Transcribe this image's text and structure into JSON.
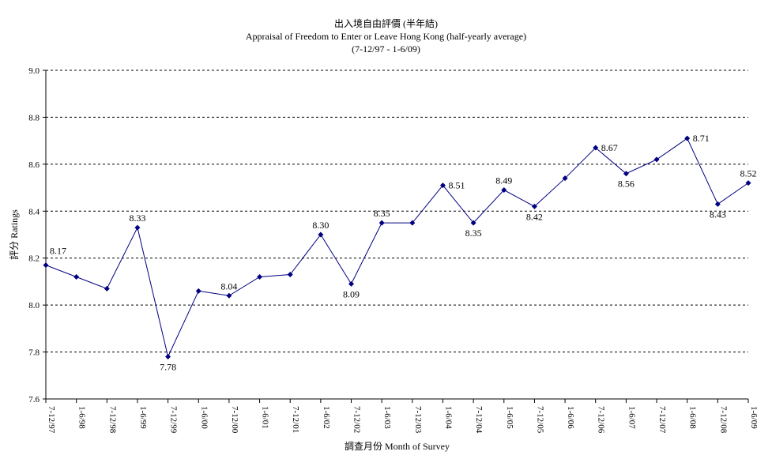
{
  "chart_data": {
    "type": "line",
    "title": "出入境自由評價 (半年結)",
    "subtitle": "Appraisal of Freedom to Enter or Leave Hong Kong (half-yearly average)",
    "period": "(7-12/97 - 1-6/09)",
    "xlabel": "調查月份 Month of Survey",
    "ylabel": "評分 Ratings",
    "ylim": [
      7.6,
      9.0
    ],
    "yticks": [
      "7.6",
      "7.8",
      "8.0",
      "8.2",
      "8.4",
      "8.6",
      "8.8",
      "9.0"
    ],
    "grid": true,
    "series_color": "#000080",
    "categories": [
      "7-12/97",
      "1-6/98",
      "7-12/98",
      "1-6/99",
      "7-12/99",
      "1-6/00",
      "7-12/00",
      "1-6/01",
      "7-12/01",
      "1-6/02",
      "7-12/02",
      "1-6/03",
      "7-12/03",
      "1-6/04",
      "7-12/04",
      "1-6/05",
      "7-12/05",
      "1-6/06",
      "7-12/06",
      "1-6/07",
      "7-12/07",
      "1-6/08",
      "7-12/08",
      "1-6/09"
    ],
    "values": [
      8.17,
      8.12,
      8.07,
      8.33,
      7.78,
      8.06,
      8.04,
      8.12,
      8.13,
      8.3,
      8.09,
      8.35,
      8.35,
      8.51,
      8.35,
      8.49,
      8.42,
      8.54,
      8.67,
      8.56,
      8.62,
      8.71,
      8.43,
      8.52
    ],
    "data_labels": [
      {
        "index": 0,
        "text": "8.17",
        "position": "above-right"
      },
      {
        "index": 3,
        "text": "8.33",
        "position": "above"
      },
      {
        "index": 4,
        "text": "7.78",
        "position": "below"
      },
      {
        "index": 6,
        "text": "8.04",
        "position": "above"
      },
      {
        "index": 9,
        "text": "8.30",
        "position": "above"
      },
      {
        "index": 10,
        "text": "8.09",
        "position": "below"
      },
      {
        "index": 11,
        "text": "8.35",
        "position": "above"
      },
      {
        "index": 13,
        "text": "8.51",
        "position": "right"
      },
      {
        "index": 14,
        "text": "8.35",
        "position": "below"
      },
      {
        "index": 15,
        "text": "8.49",
        "position": "above"
      },
      {
        "index": 16,
        "text": "8.42",
        "position": "below"
      },
      {
        "index": 18,
        "text": "8.67",
        "position": "right"
      },
      {
        "index": 19,
        "text": "8.56",
        "position": "below"
      },
      {
        "index": 21,
        "text": "8.71",
        "position": "right"
      },
      {
        "index": 22,
        "text": "8.43",
        "position": "below"
      },
      {
        "index": 23,
        "text": "8.52",
        "position": "above"
      }
    ]
  }
}
